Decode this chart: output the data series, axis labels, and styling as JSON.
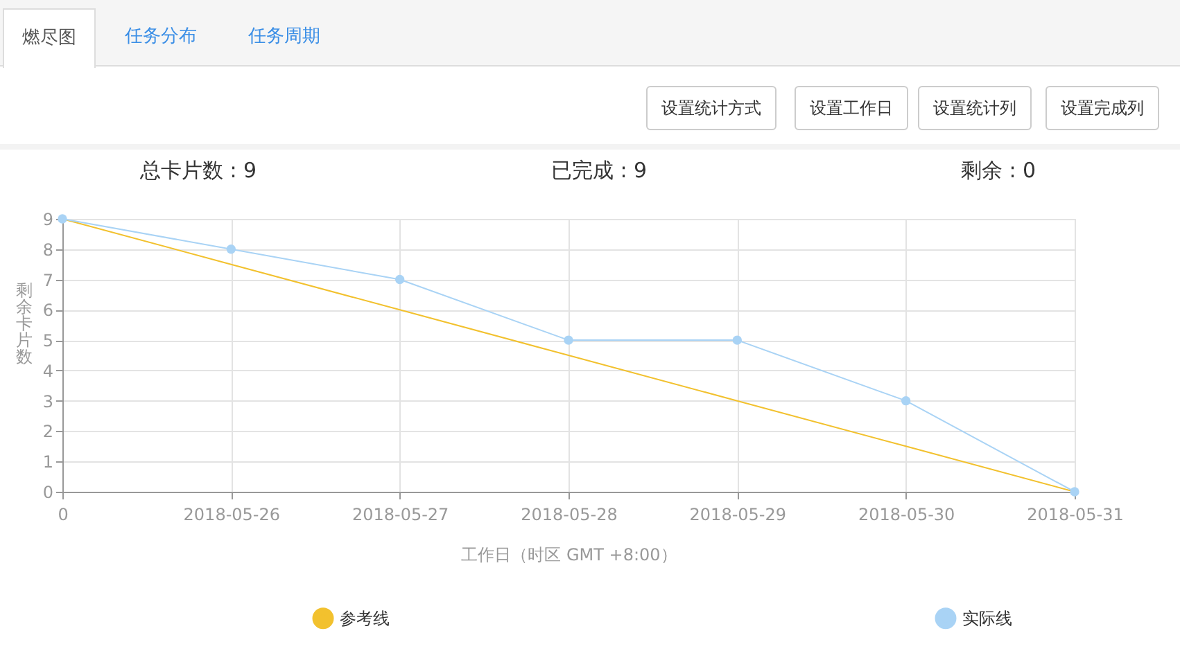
{
  "chart_data": {
    "type": "line",
    "xlabel": "工作日（时区 GMT +8:00）",
    "ylabel": "剩余卡片数",
    "categories": [
      "0",
      "2018-05-26",
      "2018-05-27",
      "2018-05-28",
      "2018-05-29",
      "2018-05-30",
      "2018-05-31"
    ],
    "series": [
      {
        "name": "参考线",
        "color": "#f2c12e",
        "marker": "none",
        "values": [
          9,
          7.5,
          6,
          4.5,
          3,
          1.5,
          0
        ]
      },
      {
        "name": "实际线",
        "color": "#a9d3f5",
        "marker": "circle",
        "values": [
          9,
          8,
          7,
          5,
          5,
          3,
          0
        ]
      }
    ],
    "ylim": [
      0,
      9
    ],
    "yticks": [
      0,
      1,
      2,
      3,
      4,
      5,
      6,
      7,
      8,
      9
    ],
    "grid": true,
    "legend": "bottom",
    "annotations": [
      "燃尽图",
      "任务分布",
      "任务周期",
      "设置统计方式",
      "设置工作日",
      "设置统计列",
      "设置完成列",
      "总卡片数 : 9",
      "已完成 : 9",
      "剩余 : 0"
    ]
  }
}
